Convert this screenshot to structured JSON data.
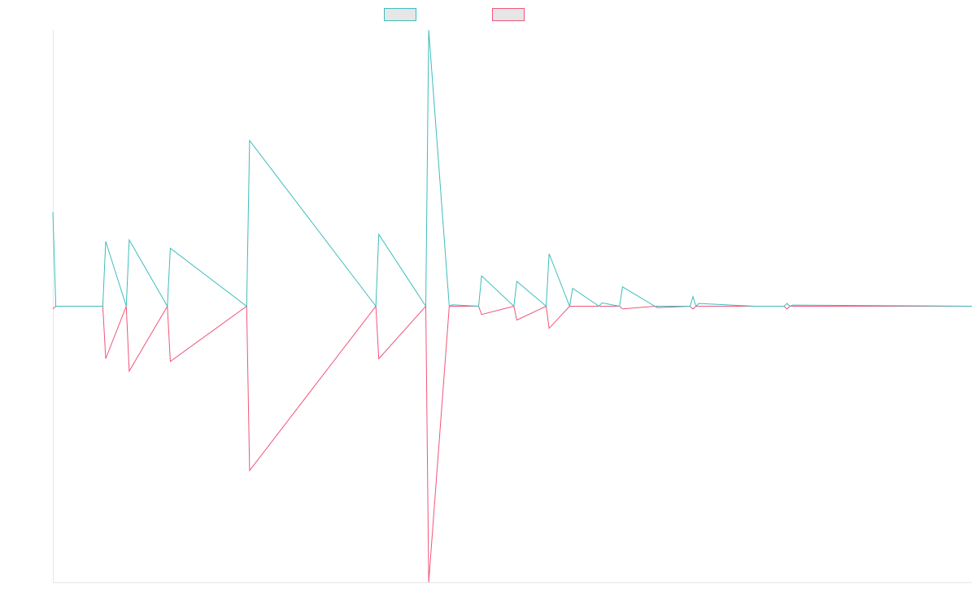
{
  "chart_data": {
    "type": "line",
    "title": "",
    "xlabel": "",
    "ylabel": "",
    "legend_position": "top-center",
    "grid": false,
    "ylim": [
      -100,
      100
    ],
    "x": [
      0,
      1,
      17,
      18,
      25,
      26,
      39,
      40,
      66,
      67,
      110,
      111,
      127,
      128,
      135,
      136,
      145,
      146,
      157,
      158,
      168,
      169,
      176,
      177,
      186,
      187,
      193,
      194,
      205,
      206,
      217,
      218,
      219,
      220,
      239,
      240,
      249,
      250,
      251,
      252,
      313
    ],
    "series": [
      {
        "color": "#3dbdbd",
        "values": [
          34,
          0,
          0,
          23.5,
          0,
          24,
          0,
          21,
          0,
          60,
          0,
          26,
          0,
          100,
          0,
          0.5,
          0,
          11,
          0,
          9,
          0,
          19,
          0,
          6.5,
          0,
          1.2,
          0,
          7,
          0,
          0,
          0,
          3.5,
          0,
          1,
          0,
          0,
          0,
          1,
          0,
          0.4,
          0
        ]
      },
      {
        "color": "#f0557a",
        "values": [
          -1,
          0,
          0,
          -19,
          0,
          -23.5,
          0,
          -20,
          0,
          -59.5,
          0,
          -19,
          0,
          -100,
          0,
          0,
          0,
          -3,
          0,
          -5,
          0,
          -8,
          0,
          0,
          0,
          0,
          0,
          -1,
          0,
          -0.5,
          0,
          -1,
          0,
          0,
          0,
          0,
          0,
          -1,
          0,
          0,
          0
        ]
      }
    ]
  }
}
